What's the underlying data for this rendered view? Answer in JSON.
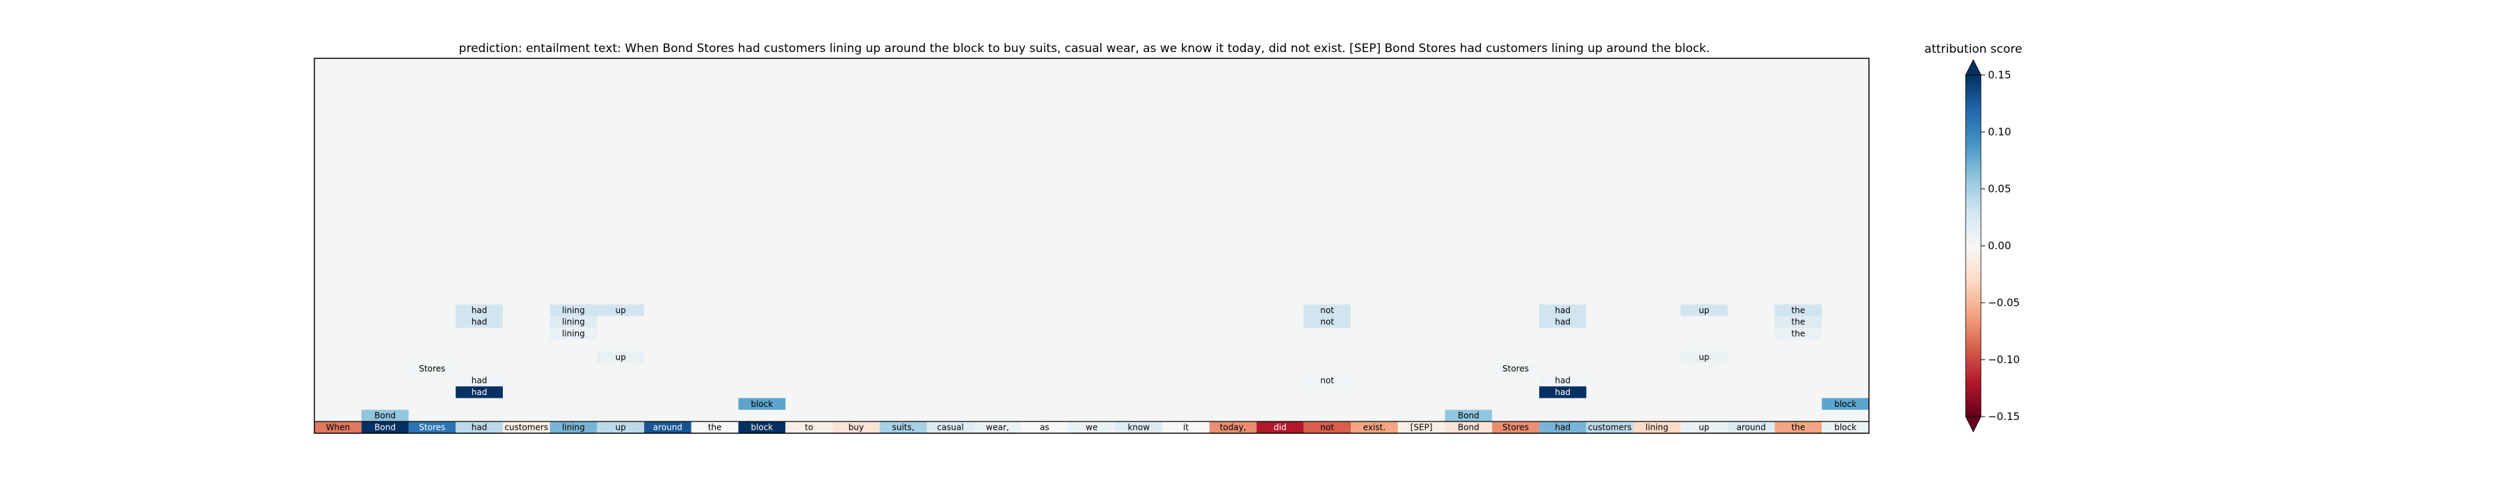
{
  "chart_data": {
    "type": "heatmap",
    "title": "prediction:  entailment     text:  When Bond Stores had customers lining up around the block to buy suits, casual wear, as we know it today, did not exist. [SEP] Bond Stores had customers lining up around the block.",
    "tokens": [
      "When",
      "Bond",
      "Stores",
      "had",
      "customers",
      "lining",
      "up",
      "around",
      "the",
      "block",
      "to",
      "buy",
      "suits,",
      "casual",
      "wear,",
      "as",
      "we",
      "know",
      "it",
      "today,",
      "did",
      "not",
      "exist.",
      "[SEP]",
      "Bond",
      "Stores",
      "had",
      "customers",
      "lining",
      "up",
      "around",
      "the",
      "block"
    ],
    "token_scores": [
      -0.08,
      0.15,
      0.11,
      0.04,
      -0.01,
      0.07,
      0.04,
      0.13,
      0.0,
      0.15,
      -0.01,
      -0.02,
      0.05,
      0.02,
      0.01,
      0.0,
      0.01,
      0.02,
      0.0,
      -0.07,
      -0.12,
      -0.09,
      -0.06,
      -0.01,
      -0.02,
      -0.07,
      0.07,
      0.04,
      -0.03,
      0.01,
      0.02,
      -0.06,
      0.01
    ],
    "attributions": [
      {
        "col": 1,
        "row": 1,
        "text": "Bond",
        "score": 0.06
      },
      {
        "col": 2,
        "row": 5,
        "text": "Stores",
        "score": 0.005
      },
      {
        "col": 3,
        "row": 3,
        "text": "had",
        "score": 0.17
      },
      {
        "col": 3,
        "row": 4,
        "text": "had",
        "score": 0.005
      },
      {
        "col": 3,
        "row": 9,
        "text": "had",
        "score": 0.03
      },
      {
        "col": 3,
        "row": 10,
        "text": "had",
        "score": 0.03
      },
      {
        "col": 5,
        "row": 8,
        "text": "lining",
        "score": 0.01
      },
      {
        "col": 5,
        "row": 9,
        "text": "lining",
        "score": 0.02
      },
      {
        "col": 5,
        "row": 10,
        "text": "lining",
        "score": 0.03
      },
      {
        "col": 6,
        "row": 6,
        "text": "up",
        "score": 0.01
      },
      {
        "col": 6,
        "row": 10,
        "text": "up",
        "score": 0.03
      },
      {
        "col": 9,
        "row": 2,
        "text": "block",
        "score": 0.08
      },
      {
        "col": 21,
        "row": 4,
        "text": "not",
        "score": 0.005
      },
      {
        "col": 21,
        "row": 9,
        "text": "not",
        "score": 0.03
      },
      {
        "col": 21,
        "row": 10,
        "text": "not",
        "score": 0.03
      },
      {
        "col": 24,
        "row": 1,
        "text": "Bond",
        "score": 0.06
      },
      {
        "col": 25,
        "row": 5,
        "text": "Stores",
        "score": 0.005
      },
      {
        "col": 26,
        "row": 3,
        "text": "had",
        "score": 0.17
      },
      {
        "col": 26,
        "row": 4,
        "text": "had",
        "score": 0.005
      },
      {
        "col": 26,
        "row": 9,
        "text": "had",
        "score": 0.03
      },
      {
        "col": 26,
        "row": 10,
        "text": "had",
        "score": 0.03
      },
      {
        "col": 29,
        "row": 6,
        "text": "up",
        "score": 0.01
      },
      {
        "col": 29,
        "row": 10,
        "text": "up",
        "score": 0.03
      },
      {
        "col": 31,
        "row": 8,
        "text": "the",
        "score": 0.01
      },
      {
        "col": 31,
        "row": 9,
        "text": "the",
        "score": 0.02
      },
      {
        "col": 31,
        "row": 10,
        "text": "the",
        "score": 0.03
      },
      {
        "col": 32,
        "row": 2,
        "text": "block",
        "score": 0.08
      }
    ],
    "colorbar": {
      "label": "attribution score",
      "range": [
        -0.15,
        0.15
      ],
      "ticks": [
        "0.15",
        "0.10",
        "0.05",
        "0.00",
        "−0.05",
        "−0.10",
        "−0.15"
      ],
      "tick_values": [
        0.15,
        0.1,
        0.05,
        0.0,
        -0.05,
        -0.1,
        -0.15
      ],
      "colormap": "RdBu",
      "extend": "both"
    },
    "rows": 32
  },
  "colors": {
    "background_cell": "#f4f6f5",
    "frame": "#000000"
  }
}
